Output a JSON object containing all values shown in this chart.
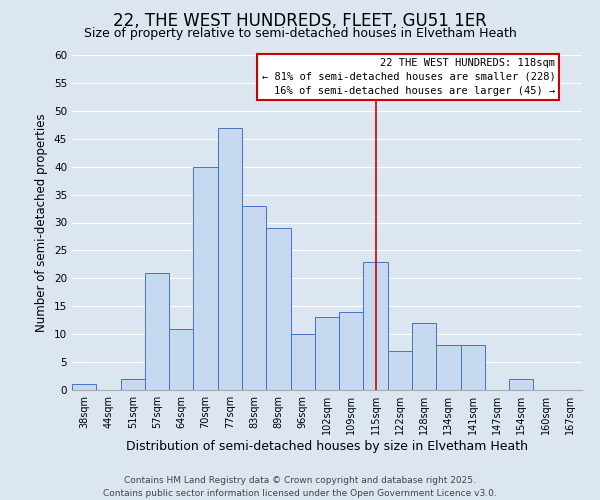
{
  "title": "22, THE WEST HUNDREDS, FLEET, GU51 1ER",
  "subtitle": "Size of property relative to semi-detached houses in Elvetham Heath",
  "xlabel": "Distribution of semi-detached houses by size in Elvetham Heath",
  "ylabel": "Number of semi-detached properties",
  "bin_labels": [
    "38sqm",
    "44sqm",
    "51sqm",
    "57sqm",
    "64sqm",
    "70sqm",
    "77sqm",
    "83sqm",
    "89sqm",
    "96sqm",
    "102sqm",
    "109sqm",
    "115sqm",
    "122sqm",
    "128sqm",
    "134sqm",
    "141sqm",
    "147sqm",
    "154sqm",
    "160sqm",
    "167sqm"
  ],
  "bar_values": [
    1,
    0,
    2,
    21,
    11,
    40,
    47,
    33,
    29,
    10,
    13,
    14,
    23,
    7,
    12,
    8,
    8,
    0,
    2,
    0,
    0
  ],
  "bar_color": "#c6d9f0",
  "bar_edge_color": "#4472c4",
  "ylim": [
    0,
    60
  ],
  "yticks": [
    0,
    5,
    10,
    15,
    20,
    25,
    30,
    35,
    40,
    45,
    50,
    55,
    60
  ],
  "grid_color": "#ffffff",
  "bg_color": "#dce6f1",
  "vline_index": 12,
  "vline_color": "#cc0000",
  "annotation_line1": "22 THE WEST HUNDREDS: 118sqm",
  "annotation_line2": "← 81% of semi-detached houses are smaller (228)",
  "annotation_line3": "16% of semi-detached houses are larger (45) →",
  "annotation_box_color": "#ffffff",
  "annotation_border_color": "#cc0000",
  "footer1": "Contains HM Land Registry data © Crown copyright and database right 2025.",
  "footer2": "Contains public sector information licensed under the Open Government Licence v3.0.",
  "title_fontsize": 12,
  "subtitle_fontsize": 9,
  "xlabel_fontsize": 9,
  "ylabel_fontsize": 8.5,
  "footer_fontsize": 6.5
}
